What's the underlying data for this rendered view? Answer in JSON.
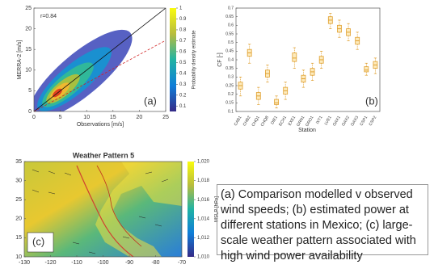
{
  "chart_data": [
    {
      "type": "density",
      "panel_label": "(a)",
      "annotation": "r=0.84",
      "xlabel": "Observations [m/s]",
      "ylabel": "MERRA-2 [m/s]",
      "xlim": [
        0,
        25
      ],
      "xticks": [
        0,
        5,
        10,
        15,
        20,
        25
      ],
      "ylim": [
        0,
        25
      ],
      "yticks": [
        0,
        5,
        10,
        15,
        20,
        25
      ],
      "colorbar_label": "Probability density estimate",
      "clim": [
        0.05,
        1
      ],
      "cticks": [
        0.1,
        0.2,
        0.3,
        0.4,
        0.5,
        0.6,
        0.7,
        0.8,
        0.9,
        1
      ]
    },
    {
      "type": "box",
      "panel_label": "(b)",
      "xlabel": "Station",
      "ylabel": "CF [-]",
      "categories": [
        "CAB1",
        "CHB2",
        "CHQ1",
        "CHQ8",
        "DIE1",
        "ECH1",
        "EXE1",
        "GRN1",
        "GRO1",
        "IXT1",
        "LVE1",
        "OAX1",
        "OAX2",
        "OAX3",
        "CSP1",
        "CSP2"
      ],
      "median": [
        0.25,
        0.44,
        0.19,
        0.32,
        0.15,
        0.22,
        0.41,
        0.29,
        0.33,
        0.4,
        0.63,
        0.58,
        0.56,
        0.51,
        0.34,
        0.37
      ],
      "q1": [
        0.23,
        0.42,
        0.17,
        0.3,
        0.14,
        0.2,
        0.39,
        0.27,
        0.31,
        0.38,
        0.61,
        0.56,
        0.54,
        0.49,
        0.33,
        0.35
      ],
      "q3": [
        0.27,
        0.46,
        0.21,
        0.34,
        0.17,
        0.24,
        0.44,
        0.31,
        0.35,
        0.42,
        0.65,
        0.6,
        0.58,
        0.53,
        0.36,
        0.39
      ],
      "whislo": [
        0.19,
        0.38,
        0.14,
        0.27,
        0.12,
        0.17,
        0.35,
        0.24,
        0.28,
        0.35,
        0.58,
        0.53,
        0.51,
        0.46,
        0.31,
        0.32
      ],
      "whishi": [
        0.3,
        0.49,
        0.24,
        0.37,
        0.19,
        0.27,
        0.47,
        0.34,
        0.38,
        0.45,
        0.67,
        0.63,
        0.61,
        0.56,
        0.38,
        0.41
      ],
      "color": "#e0a030",
      "fill": "#fdebbd",
      "ylim": [
        0.1,
        0.7
      ],
      "yticks": [
        0.1,
        0.15,
        0.2,
        0.25,
        0.3,
        0.35,
        0.4,
        0.45,
        0.5,
        0.55,
        0.6,
        0.65,
        0.7
      ]
    },
    {
      "type": "map",
      "panel_label": "(c)",
      "title": "Weather Pattern 5",
      "xlim": [
        -130,
        -70
      ],
      "xticks": [
        -130,
        -120,
        -110,
        -100,
        -90,
        -80,
        -70
      ],
      "ylim": [
        10,
        35
      ],
      "yticks": [
        10,
        15,
        20,
        25,
        30,
        35
      ],
      "colorbar_label": "MSLP [hPa]",
      "clim": [
        1010,
        1020
      ],
      "cticks": [
        {
          "value": 1010,
          "label": "1,010"
        },
        {
          "value": 1012,
          "label": "1,012"
        },
        {
          "value": 1014,
          "label": "1,014"
        },
        {
          "value": 1016,
          "label": "1,016"
        },
        {
          "value": 1018,
          "label": "1,018"
        },
        {
          "value": 1020,
          "label": "1,020"
        }
      ]
    }
  ],
  "caption": "(a) Comparison modelled v observed wind speeds; (b) estimated power at different stations in Mexico; (c) large-scale weather pattern associated with high wind power availability"
}
